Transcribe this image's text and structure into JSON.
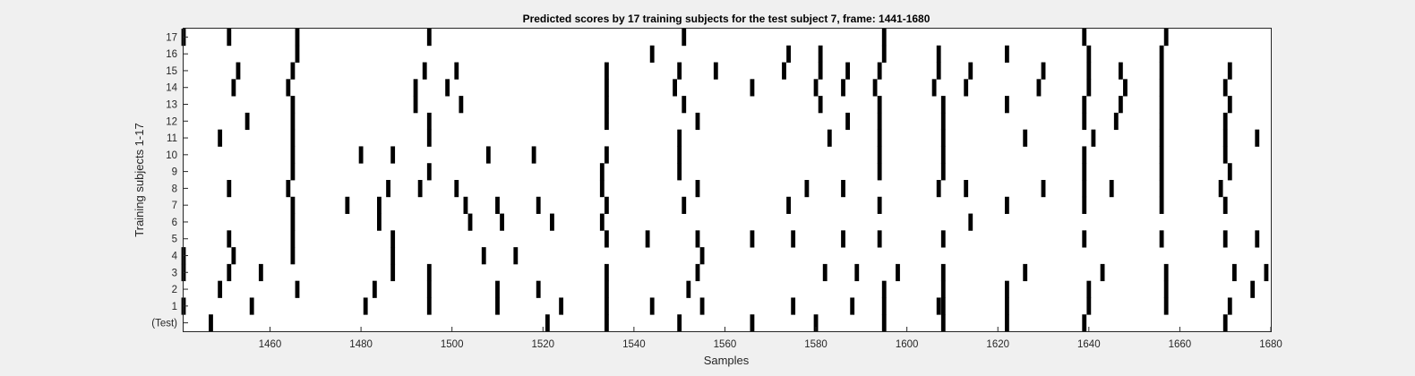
{
  "chart_data": {
    "type": "heatmap",
    "title": "Predicted scores by 17 training subjects for the test subject 7, frame: 1441-1680",
    "xlabel": "Samples",
    "ylabel": "Training subjects 1-17",
    "xlim": [
      1441,
      1680
    ],
    "x_ticks": [
      1460,
      1480,
      1500,
      1520,
      1540,
      1560,
      1580,
      1600,
      1620,
      1640,
      1660,
      1680
    ],
    "row_labels": [
      "(Test)",
      "1",
      "2",
      "3",
      "4",
      "5",
      "6",
      "7",
      "8",
      "9",
      "10",
      "11",
      "12",
      "13",
      "14",
      "15",
      "16",
      "17"
    ],
    "background_color": "#ffffff",
    "mark_color": "#000000",
    "rows": [
      {
        "label": "(Test)",
        "marks": [
          1447,
          1521,
          1534,
          1550,
          1566,
          1580,
          1595,
          1608,
          1622,
          1639,
          1670
        ]
      },
      {
        "label": "1",
        "marks": [
          1441,
          1456,
          1481,
          1495,
          1510,
          1524,
          1534,
          1544,
          1555,
          1575,
          1588,
          1595,
          1607,
          1608,
          1622,
          1640,
          1657,
          1671
        ]
      },
      {
        "label": "2",
        "marks": [
          1449,
          1466,
          1483,
          1495,
          1510,
          1519,
          1534,
          1552,
          1595,
          1608,
          1622,
          1640,
          1657,
          1676
        ]
      },
      {
        "label": "3",
        "marks": [
          1441,
          1451,
          1458,
          1487,
          1495,
          1534,
          1554,
          1582,
          1589,
          1598,
          1608,
          1626,
          1643,
          1657,
          1672,
          1679
        ]
      },
      {
        "label": "4",
        "marks": [
          1441,
          1452,
          1465,
          1487,
          1507,
          1514,
          1555
        ]
      },
      {
        "label": "5",
        "marks": [
          1451,
          1465,
          1487,
          1534,
          1543,
          1554,
          1566,
          1575,
          1586,
          1594,
          1608,
          1639,
          1656,
          1670,
          1677
        ]
      },
      {
        "label": "6",
        "marks": [
          1465,
          1484,
          1504,
          1511,
          1522,
          1533,
          1614
        ]
      },
      {
        "label": "7",
        "marks": [
          1465,
          1477,
          1484,
          1503,
          1510,
          1519,
          1534,
          1551,
          1574,
          1594,
          1622,
          1639,
          1656,
          1670
        ]
      },
      {
        "label": "8",
        "marks": [
          1451,
          1464,
          1486,
          1493,
          1501,
          1533,
          1554,
          1578,
          1586,
          1607,
          1613,
          1630,
          1639,
          1645,
          1656,
          1669
        ]
      },
      {
        "label": "9",
        "marks": [
          1465,
          1495,
          1533,
          1550,
          1594,
          1608,
          1639,
          1656,
          1671
        ]
      },
      {
        "label": "10",
        "marks": [
          1465,
          1480,
          1487,
          1508,
          1518,
          1534,
          1550,
          1594,
          1608,
          1639,
          1656,
          1670
        ]
      },
      {
        "label": "11",
        "marks": [
          1449,
          1465,
          1495,
          1550,
          1583,
          1594,
          1608,
          1626,
          1641,
          1656,
          1670,
          1677
        ]
      },
      {
        "label": "12",
        "marks": [
          1455,
          1465,
          1495,
          1534,
          1554,
          1587,
          1594,
          1608,
          1639,
          1646,
          1656,
          1670
        ]
      },
      {
        "label": "13",
        "marks": [
          1465,
          1492,
          1502,
          1534,
          1551,
          1581,
          1594,
          1608,
          1622,
          1639,
          1647,
          1656,
          1671
        ]
      },
      {
        "label": "14",
        "marks": [
          1452,
          1464,
          1492,
          1499,
          1534,
          1549,
          1566,
          1580,
          1586,
          1593,
          1606,
          1613,
          1629,
          1640,
          1648,
          1656,
          1670
        ]
      },
      {
        "label": "15",
        "marks": [
          1453,
          1465,
          1494,
          1501,
          1534,
          1550,
          1558,
          1573,
          1581,
          1587,
          1594,
          1607,
          1614,
          1630,
          1640,
          1647,
          1656,
          1671
        ]
      },
      {
        "label": "16",
        "marks": [
          1466,
          1544,
          1574,
          1581,
          1595,
          1607,
          1622,
          1640,
          1656
        ]
      },
      {
        "label": "17",
        "marks": [
          1441,
          1451,
          1466,
          1495,
          1551,
          1595,
          1639,
          1657
        ]
      }
    ]
  }
}
